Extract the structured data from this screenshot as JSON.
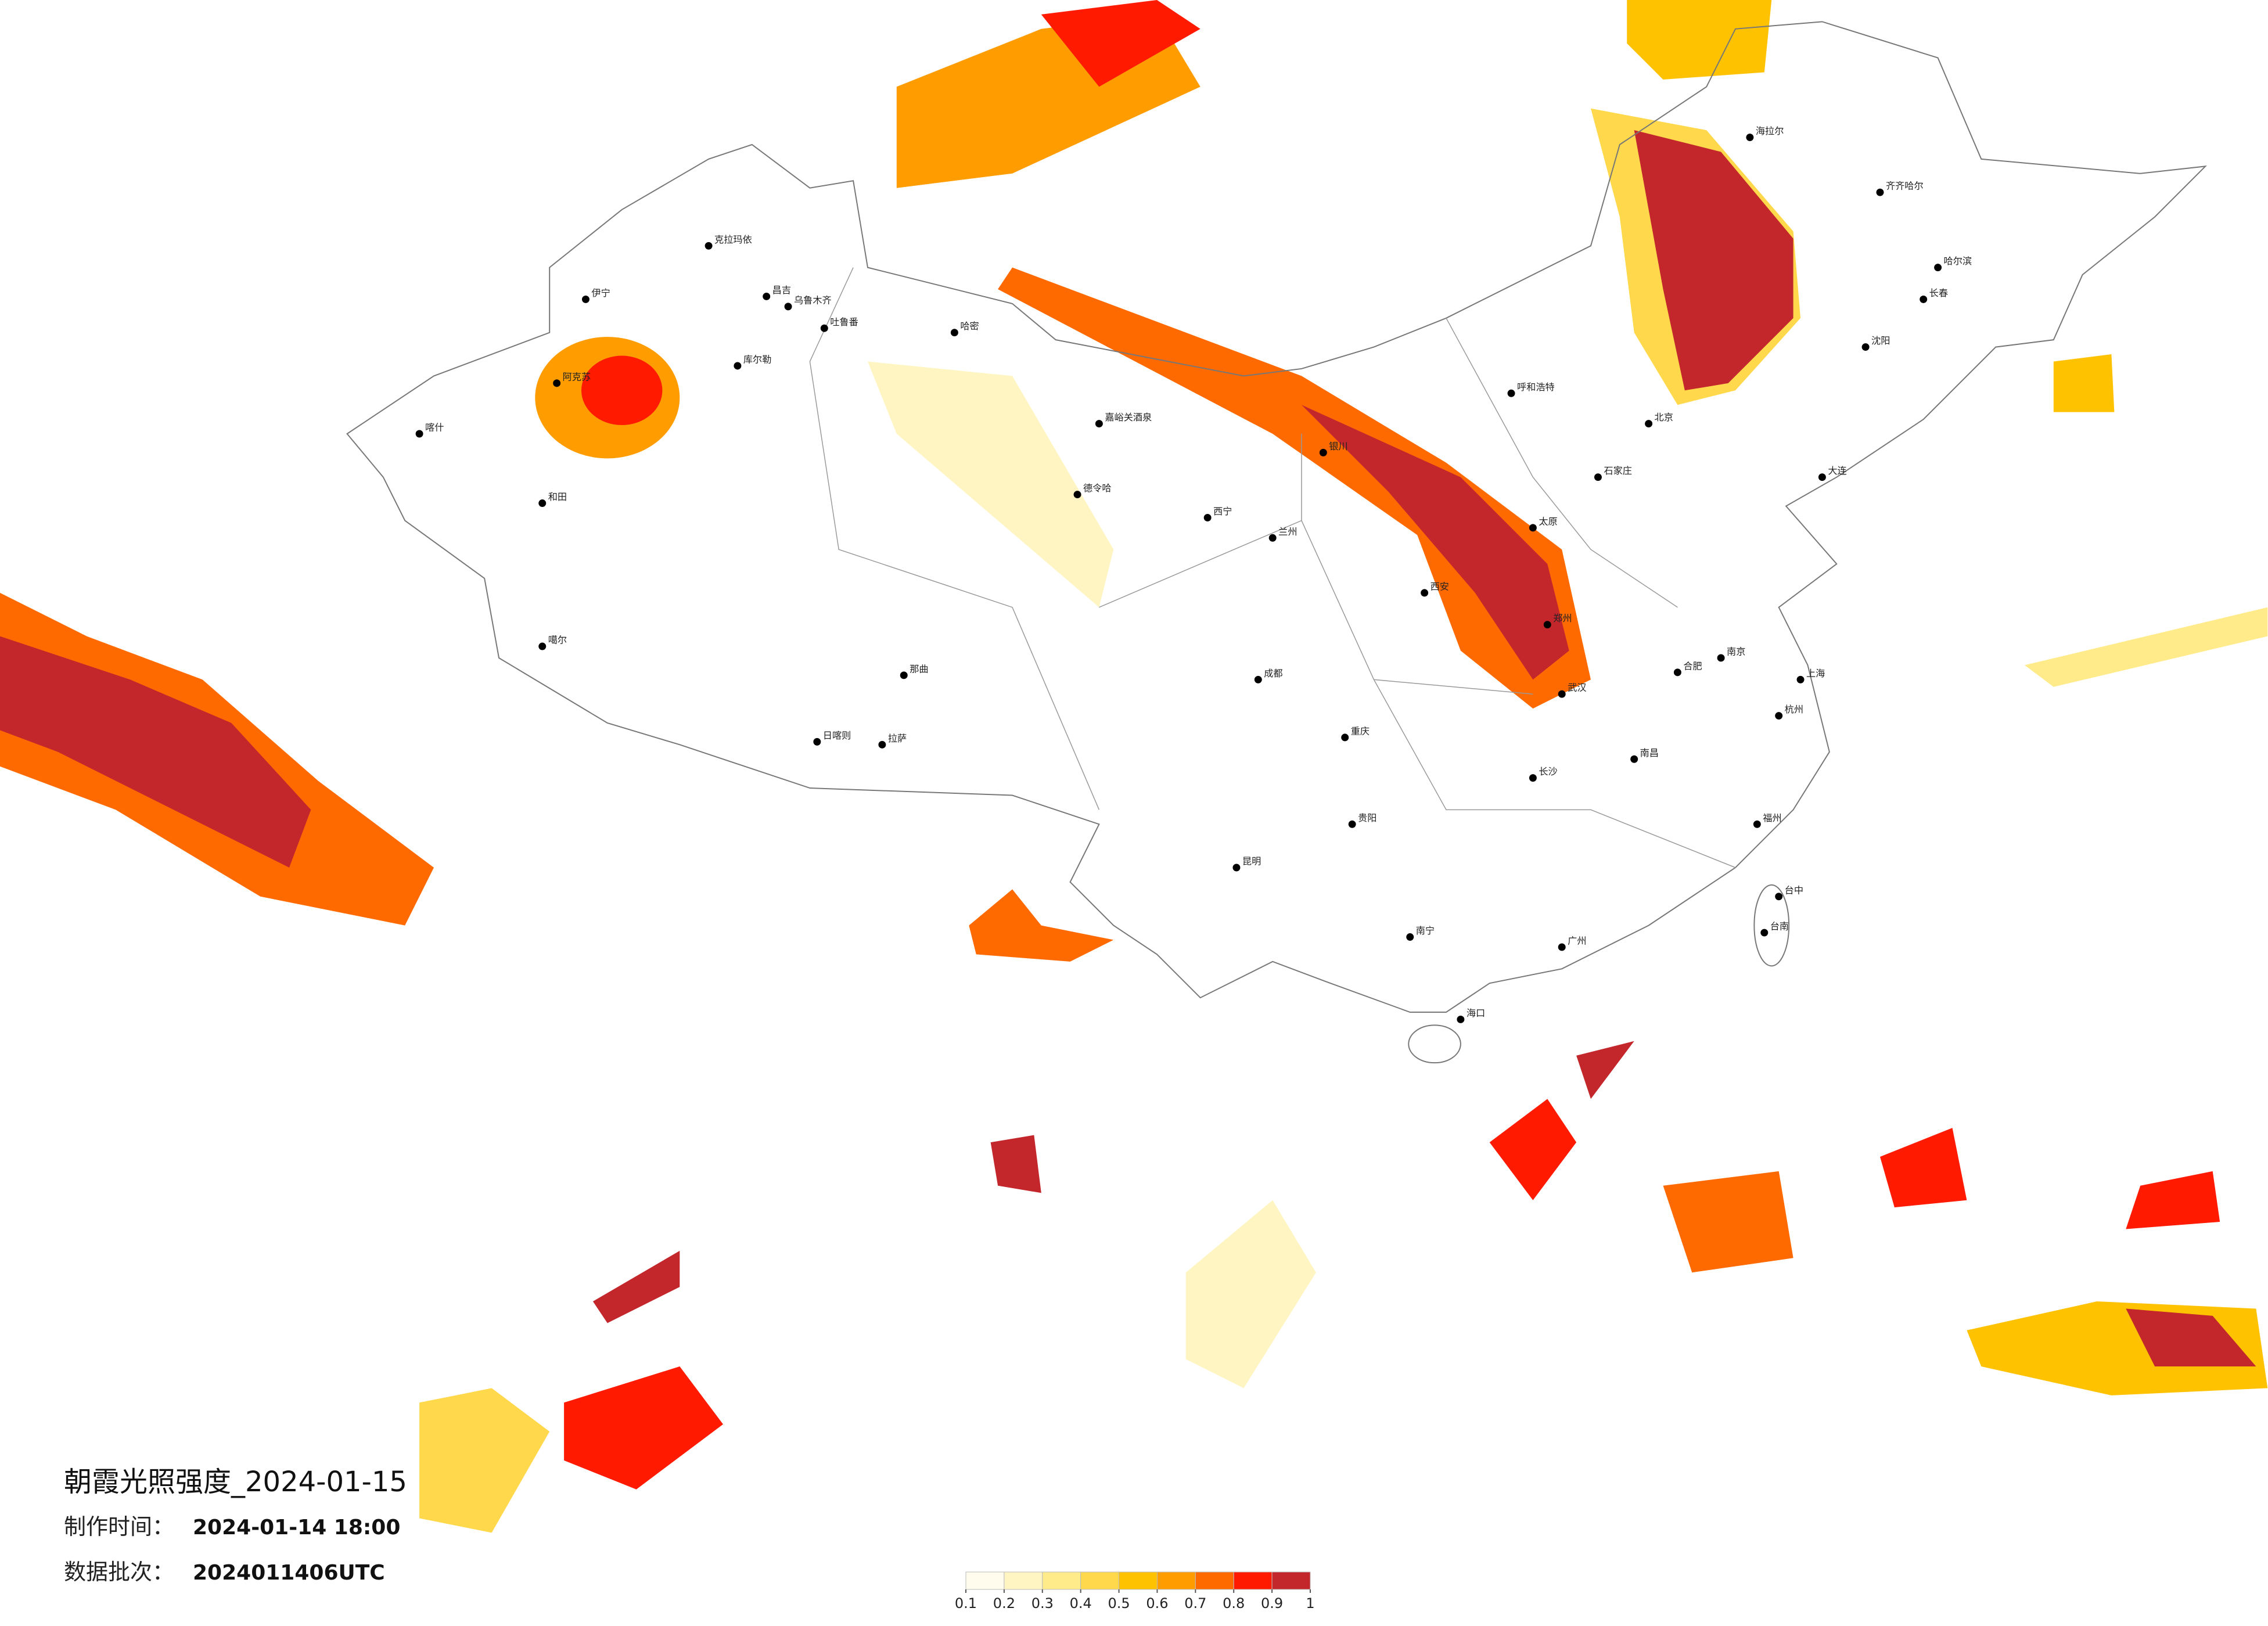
{
  "title": "朝霞光照强度_2024-01-15",
  "production_time": {
    "label": "制作时间：",
    "value": "2024-01-14 18:00"
  },
  "batch": {
    "label": "数据批次：",
    "value": "2024011406UTC"
  },
  "legend": {
    "ticks": [
      0.1,
      0.2,
      0.3,
      0.4,
      0.5,
      0.6,
      0.7,
      0.8,
      0.9,
      1
    ],
    "colors": [
      "#fffcee",
      "#fff5c2",
      "#ffeb8a",
      "#ffd84c",
      "#ffc200",
      "#ff9c00",
      "#ff6a00",
      "#ff1a00",
      "#c3272b"
    ]
  },
  "cities": [
    "伊宁",
    "克拉玛依",
    "昌吉",
    "乌鲁木齐",
    "吐鲁番",
    "哈密",
    "库尔勒",
    "阿克苏",
    "喀什",
    "和田",
    "噶尔",
    "德令哈",
    "嘉峪关酒泉",
    "拉萨",
    "日喀则",
    "那曲",
    "西宁",
    "兰州",
    "银川",
    "呼和浩特",
    "海拉尔",
    "齐齐哈尔",
    "哈尔滨",
    "长春",
    "沈阳",
    "大连",
    "北京",
    "石家庄",
    "太原",
    "郑州",
    "西安",
    "武汉",
    "长沙",
    "南昌",
    "合肥",
    "南京",
    "上海",
    "杭州",
    "福州",
    "台中",
    "台南",
    "广州",
    "南宁",
    "海口",
    "昆明",
    "贵阳",
    "重庆",
    "成都"
  ]
}
